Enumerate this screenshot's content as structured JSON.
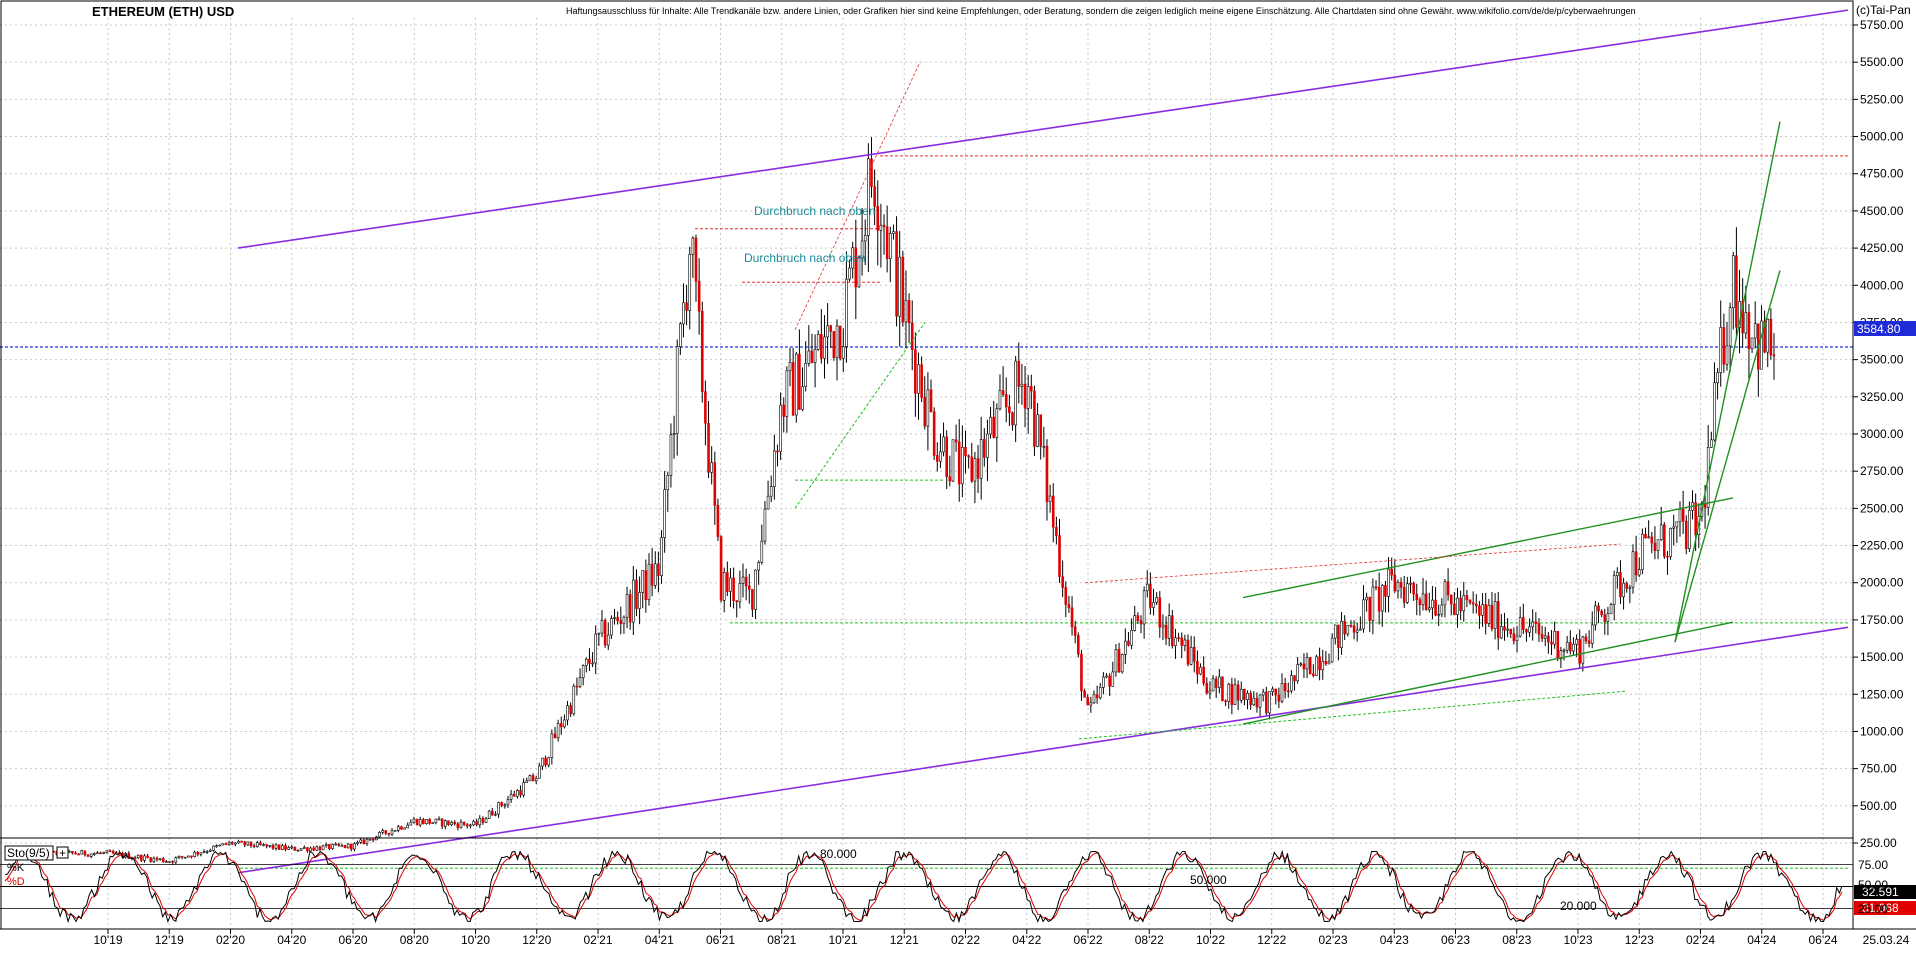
{
  "title": "ETHEREUM (ETH) USD",
  "disclaimer": "Haftungsausschluss für Inhalte: Alle Trendkanäle bzw. andere Linien, oder Grafiken hier sind keine Empfehlungen, oder Beratung, sondern die zeigen lediglich meine eigene Einschätzung. Alle Chartdaten sind ohne Gewähr. www.wikifolio.com/de/de/p/cyberwaehrungen",
  "copyright": "(c)Tai-Pan",
  "annotations": [
    "Durchbruch nach oben",
    "Durchbruch nach oben"
  ],
  "price_badge": "3584.80",
  "indicator": {
    "label": "Sto(9/5)",
    "k_label": "%K",
    "d_label": "%D",
    "levels": [
      "80.000",
      "50.000",
      "20.000"
    ],
    "k_value": "32.591",
    "d_value": "31.068",
    "axis_ticks": [
      "75.00",
      "50.00",
      "25.00"
    ]
  },
  "chart_data": {
    "type": "line",
    "subtype": "candlestick",
    "title": "ETHEREUM (ETH) USD",
    "y_scale": "linear",
    "ylim": [
      0,
      5750
    ],
    "y_ticks": [
      "250.00",
      "500.00",
      "750.00",
      "1000.00",
      "1250.00",
      "1500.00",
      "1750.00",
      "2000.00",
      "2250.00",
      "2500.00",
      "2750.00",
      "3000.00",
      "3250.00",
      "3500.00",
      "3750.00",
      "4000.00",
      "4250.00",
      "4500.00",
      "4750.00",
      "5000.00",
      "5250.00",
      "5500.00",
      "5750.00"
    ],
    "x_ticks": [
      "10'19",
      "12'19",
      "02'20",
      "04'20",
      "06'20",
      "08'20",
      "10'20",
      "12'20",
      "02'21",
      "04'21",
      "06'21",
      "08'21",
      "10'21",
      "12'21",
      "02'22",
      "04'22",
      "06'22",
      "08'22",
      "10'22",
      "12'22",
      "02'23",
      "04'23",
      "06'23",
      "08'23",
      "10'23",
      "12'23",
      "02'24",
      "04'24",
      "06'24"
    ],
    "x_end_label": "25.03.24",
    "last_price": 3584.8,
    "grid": true,
    "series": [
      {
        "x": [
          "10'19",
          "12'19",
          "02'20",
          "04'20",
          "06'20",
          "08'20",
          "10'20",
          "12'20",
          "02'21",
          "04'21",
          "05'21",
          "06'21",
          "07'21",
          "08'21",
          "10'21",
          "11'21",
          "12'21",
          "01'22",
          "02'22",
          "04'22",
          "06'22",
          "07'22",
          "08'22",
          "10'22",
          "12'22",
          "02'23",
          "04'23",
          "06'23",
          "08'23",
          "10'23",
          "12'23",
          "02'24",
          "03'24",
          "04'24"
        ],
        "values": [
          180,
          130,
          250,
          210,
          230,
          400,
          370,
          700,
          1600,
          2100,
          4300,
          2000,
          1900,
          3200,
          3800,
          4800,
          3800,
          3000,
          2700,
          3400,
          1100,
          1500,
          1900,
          1300,
          1200,
          1600,
          2000,
          1850,
          1700,
          1550,
          2200,
          2400,
          4050,
          3584.8
        ]
      }
    ],
    "stochastic": {
      "name": "Sto(9/5)",
      "k_last": 32.591,
      "d_last": 31.068,
      "levels": [
        80,
        50,
        20
      ],
      "ylim": [
        0,
        100
      ]
    }
  }
}
